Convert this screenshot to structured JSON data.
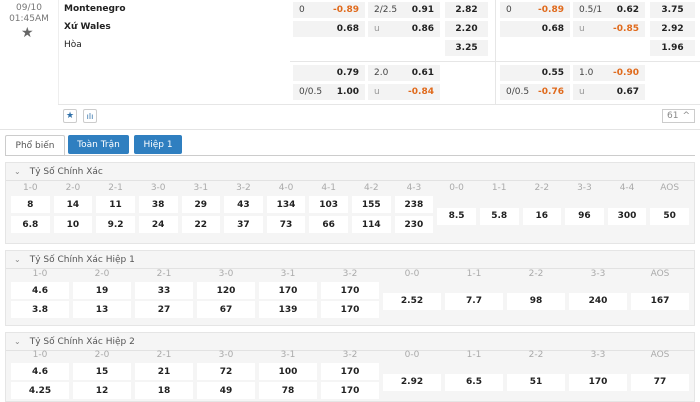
{
  "match": {
    "date": "09/10",
    "time": "01:45AM",
    "home": "Montenegro",
    "away": "Xứ Wales",
    "draw": "Hòa"
  },
  "odds": {
    "ft": {
      "hdp": {
        "line1": "0",
        "home": "-0.89",
        "away": "0.68",
        "line2": "0/0.5"
      },
      "ou": {
        "line": "2/2.5",
        "over": "0.91",
        "u": "u",
        "under": "0.86"
      },
      "x12": [
        "2.82",
        "2.20",
        "3.25"
      ],
      "hdp2": {
        "home": "0.79",
        "away": "1.00"
      },
      "ou2": {
        "line": "2.0",
        "over": "0.61",
        "u": "u",
        "under": "-0.84"
      }
    },
    "h1": {
      "hdp": {
        "line1": "0",
        "home": "-0.89",
        "away": "0.68",
        "line2": "0/0.5"
      },
      "ou": {
        "line": "0.5/1",
        "over": "0.62",
        "u": "u",
        "under": "-0.85"
      },
      "x12": [
        "3.75",
        "2.92",
        "1.96"
      ],
      "hdp2": {
        "home": "0.55",
        "away": "-0.76"
      },
      "ou2": {
        "line": "1.0",
        "over": "-0.90",
        "u": "u",
        "under": "0.67"
      }
    }
  },
  "more_count": "61",
  "tabs": [
    "Phổ biến",
    "Toàn Trận",
    "Hiệp 1"
  ],
  "sections": [
    {
      "title": "Tỷ Số Chính Xác",
      "scores": [
        "1-0",
        "2-0",
        "2-1",
        "3-0",
        "3-1",
        "3-2",
        "4-0",
        "4-1",
        "4-2",
        "4-3"
      ],
      "home": [
        "8",
        "14",
        "11",
        "38",
        "29",
        "43",
        "134",
        "103",
        "155",
        "238"
      ],
      "away": [
        "6.8",
        "10",
        "9.2",
        "24",
        "22",
        "37",
        "73",
        "66",
        "114",
        "230"
      ],
      "draws": [
        "0-0",
        "1-1",
        "2-2",
        "3-3",
        "4-4",
        "AOS"
      ],
      "draw_odds": [
        "8.5",
        "5.8",
        "16",
        "96",
        "300",
        "50"
      ]
    },
    {
      "title": "Tỷ Số Chính Xác Hiệp 1",
      "scores": [
        "1-0",
        "2-0",
        "2-1",
        "3-0",
        "3-1",
        "3-2"
      ],
      "home": [
        "4.6",
        "19",
        "33",
        "120",
        "170",
        "170"
      ],
      "away": [
        "3.8",
        "13",
        "27",
        "67",
        "139",
        "170"
      ],
      "draws": [
        "0-0",
        "1-1",
        "2-2",
        "3-3",
        "AOS"
      ],
      "draw_odds": [
        "2.52",
        "7.7",
        "98",
        "240",
        "167"
      ]
    },
    {
      "title": "Tỷ Số Chính Xác Hiệp 2",
      "scores": [
        "1-0",
        "2-0",
        "2-1",
        "3-0",
        "3-1",
        "3-2"
      ],
      "home": [
        "4.6",
        "15",
        "21",
        "72",
        "100",
        "170"
      ],
      "away": [
        "4.25",
        "12",
        "18",
        "49",
        "78",
        "170"
      ],
      "draws": [
        "0-0",
        "1-1",
        "2-2",
        "3-3",
        "AOS"
      ],
      "draw_odds": [
        "2.92",
        "6.5",
        "51",
        "170",
        "77"
      ]
    }
  ],
  "colors": {
    "accent": "#2f7fc0",
    "negative": "#e06a1c"
  }
}
